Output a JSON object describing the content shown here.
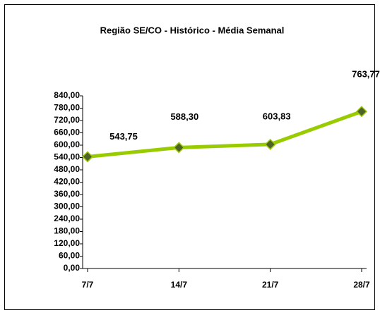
{
  "chart_data": {
    "type": "line",
    "title": "Região SE/CO - Histórico - Média Semanal",
    "categories": [
      "7/7",
      "14/7",
      "21/7",
      "28/7"
    ],
    "series": [
      {
        "name": "Média Semanal",
        "color": "#99cc00",
        "marker_color": "#4f6228",
        "values": [
          543.75,
          588.3,
          603.83,
          763.77
        ],
        "value_labels": [
          "543,75",
          "588,30",
          "603,83",
          "763,77"
        ]
      }
    ],
    "ylim": [
      0,
      840
    ],
    "yticks": [
      {
        "value": 0,
        "label": "0,00"
      },
      {
        "value": 60,
        "label": "60,00"
      },
      {
        "value": 120,
        "label": "120,00"
      },
      {
        "value": 180,
        "label": "180,00"
      },
      {
        "value": 240,
        "label": "240,00"
      },
      {
        "value": 300,
        "label": "300,00"
      },
      {
        "value": 360,
        "label": "360,00"
      },
      {
        "value": 420,
        "label": "420,00"
      },
      {
        "value": 480,
        "label": "480,00"
      },
      {
        "value": 540,
        "label": "540,00"
      },
      {
        "value": 600,
        "label": "600,00"
      },
      {
        "value": 660,
        "label": "660,00"
      },
      {
        "value": 720,
        "label": "720,00"
      },
      {
        "value": 780,
        "label": "780,00"
      },
      {
        "value": 840,
        "label": "840,00"
      }
    ],
    "grid": false
  }
}
